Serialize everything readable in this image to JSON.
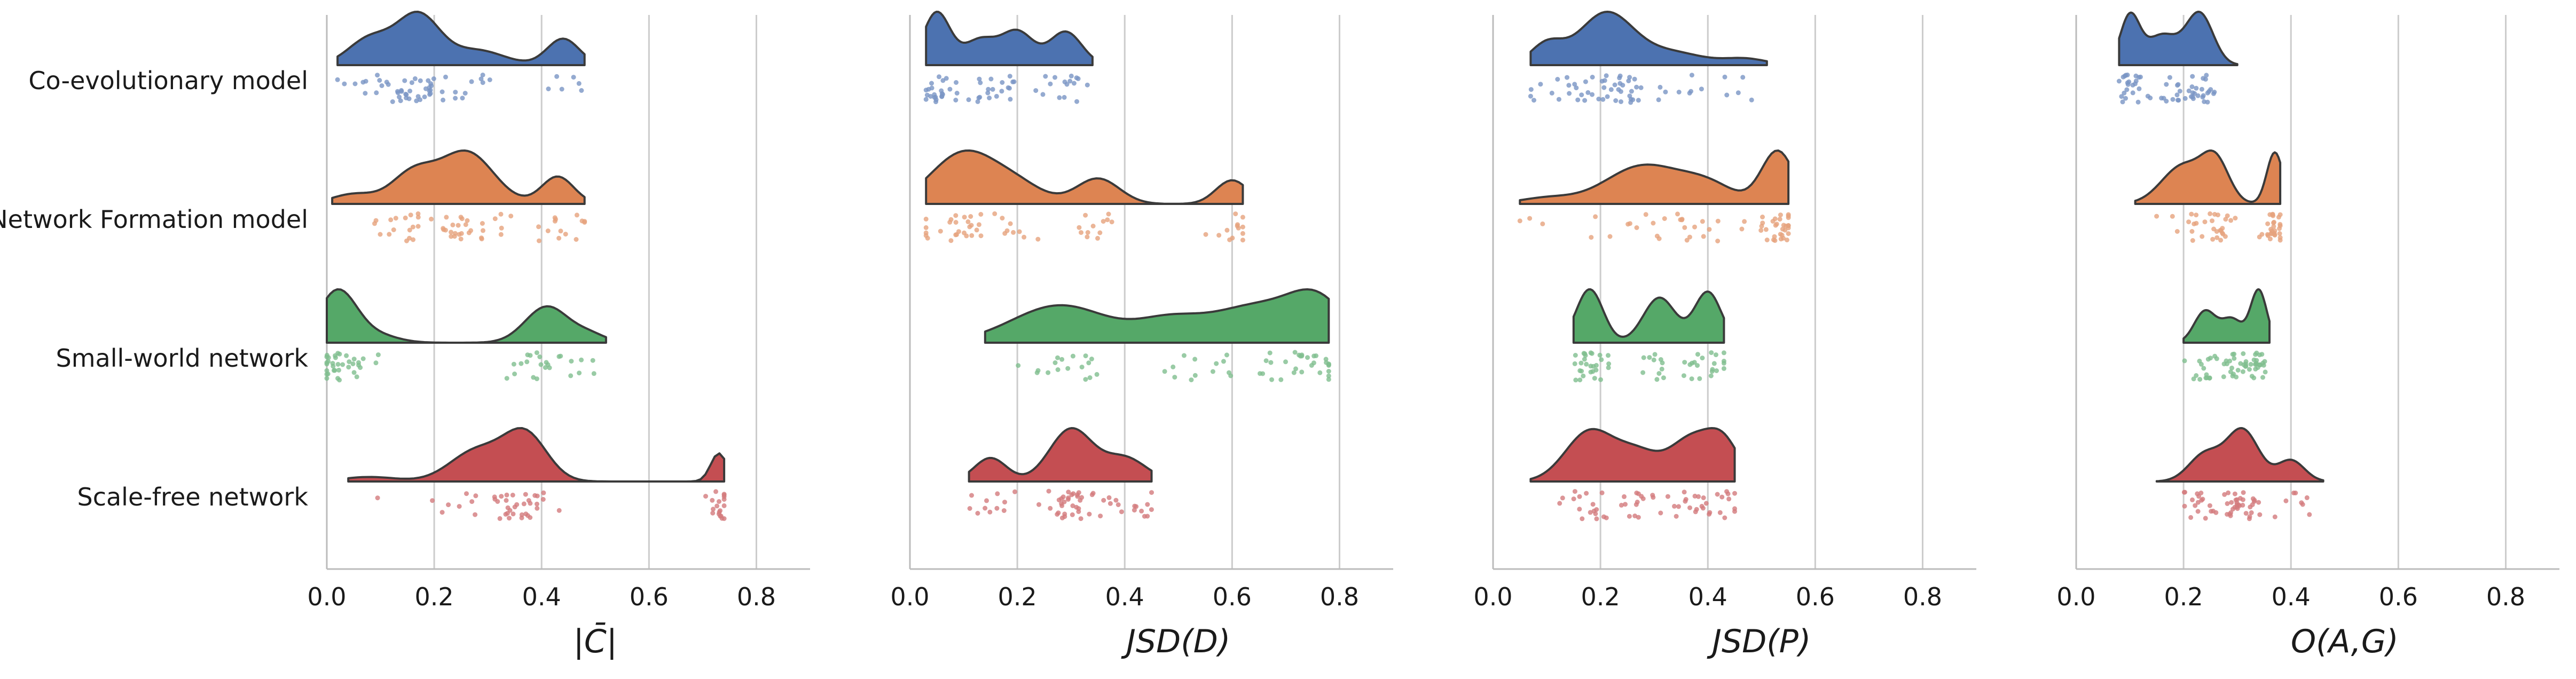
{
  "chart_data": {
    "type": "raincloud",
    "categories": [
      "Co-evolutionary model",
      "Network Formation model",
      "Small-world network",
      "Scale-free network"
    ],
    "colors": [
      "#4c72b0",
      "#dd8452",
      "#55a868",
      "#c44e52"
    ],
    "xlim": [
      0,
      0.9
    ],
    "xticks": [
      "0.0",
      "0.2",
      "0.4",
      "0.6",
      "0.8"
    ],
    "grid": "vertical",
    "panels": [
      {
        "xlabel": "|C̄|",
        "series": [
          {
            "name": "Co-evolutionary model",
            "min": 0.02,
            "max": 0.48,
            "peaks": [
              [
                0.08,
                0.45,
                0.04
              ],
              [
                0.17,
                0.85,
                0.04
              ],
              [
                0.28,
                0.25,
                0.05
              ],
              [
                0.44,
                0.45,
                0.03
              ]
            ]
          },
          {
            "name": "Network Formation model",
            "min": 0.01,
            "max": 0.48,
            "peaks": [
              [
                0.05,
                0.18,
                0.04
              ],
              [
                0.16,
                0.55,
                0.04
              ],
              [
                0.26,
                0.95,
                0.05
              ],
              [
                0.43,
                0.5,
                0.03
              ]
            ]
          },
          {
            "name": "Small-world network",
            "min": 0.0,
            "max": 0.52,
            "peaks": [
              [
                0.02,
                1.0,
                0.035
              ],
              [
                0.09,
                0.15,
                0.04
              ],
              [
                0.41,
                0.7,
                0.04
              ],
              [
                0.49,
                0.15,
                0.03
              ]
            ]
          },
          {
            "name": "Scale-free network",
            "min": 0.04,
            "max": 0.74,
            "peaks": [
              [
                0.08,
                0.08,
                0.05
              ],
              [
                0.28,
                0.55,
                0.05
              ],
              [
                0.37,
                0.82,
                0.04
              ],
              [
                0.73,
                0.5,
                0.015
              ]
            ]
          }
        ]
      },
      {
        "xlabel": "JSD(D)",
        "series": [
          {
            "name": "Co-evolutionary model",
            "min": 0.03,
            "max": 0.34,
            "peaks": [
              [
                0.05,
                0.95,
                0.025
              ],
              [
                0.13,
                0.45,
                0.03
              ],
              [
                0.2,
                0.6,
                0.03
              ],
              [
                0.29,
                0.6,
                0.03
              ]
            ]
          },
          {
            "name": "Network Formation model",
            "min": 0.03,
            "max": 0.62,
            "peaks": [
              [
                0.1,
                0.6,
                0.06
              ],
              [
                0.2,
                0.2,
                0.05
              ],
              [
                0.35,
                0.3,
                0.04
              ],
              [
                0.6,
                0.28,
                0.03
              ]
            ]
          },
          {
            "name": "Small-world network",
            "min": 0.14,
            "max": 0.78,
            "peaks": [
              [
                0.28,
                0.9,
                0.09
              ],
              [
                0.48,
                0.45,
                0.06
              ],
              [
                0.65,
                0.9,
                0.09
              ],
              [
                0.76,
                0.8,
                0.05
              ]
            ]
          },
          {
            "name": "Scale-free network",
            "min": 0.11,
            "max": 0.45,
            "peaks": [
              [
                0.15,
                0.45,
                0.03
              ],
              [
                0.3,
                1.0,
                0.04
              ],
              [
                0.4,
                0.45,
                0.04
              ]
            ]
          }
        ]
      },
      {
        "xlabel": "JSD(P)",
        "series": [
          {
            "name": "Co-evolutionary model",
            "min": 0.07,
            "max": 0.51,
            "peaks": [
              [
                0.1,
                0.4,
                0.03
              ],
              [
                0.21,
                1.0,
                0.05
              ],
              [
                0.33,
                0.25,
                0.06
              ],
              [
                0.47,
                0.12,
                0.04
              ]
            ]
          },
          {
            "name": "Network Formation model",
            "min": 0.05,
            "max": 0.55,
            "peaks": [
              [
                0.1,
                0.1,
                0.05
              ],
              [
                0.28,
                0.65,
                0.07
              ],
              [
                0.4,
                0.3,
                0.05
              ],
              [
                0.53,
                0.9,
                0.03
              ]
            ]
          },
          {
            "name": "Small-world network",
            "min": 0.15,
            "max": 0.43,
            "peaks": [
              [
                0.18,
                0.95,
                0.025
              ],
              [
                0.31,
                0.8,
                0.03
              ],
              [
                0.4,
                0.9,
                0.025
              ]
            ]
          },
          {
            "name": "Scale-free network",
            "min": 0.07,
            "max": 0.45,
            "peaks": [
              [
                0.18,
                0.65,
                0.045
              ],
              [
                0.27,
                0.35,
                0.04
              ],
              [
                0.37,
                0.55,
                0.04
              ],
              [
                0.43,
                0.45,
                0.03
              ]
            ]
          }
        ]
      },
      {
        "xlabel": "O(A,G)",
        "series": [
          {
            "name": "Co-evolutionary model",
            "min": 0.08,
            "max": 0.3,
            "peaks": [
              [
                0.1,
                0.8,
                0.018
              ],
              [
                0.16,
                0.5,
                0.03
              ],
              [
                0.23,
                0.85,
                0.025
              ]
            ]
          },
          {
            "name": "Network Formation model",
            "min": 0.11,
            "max": 0.38,
            "peaks": [
              [
                0.2,
                0.45,
                0.04
              ],
              [
                0.26,
                0.45,
                0.025
              ],
              [
                0.37,
                0.6,
                0.015
              ]
            ]
          },
          {
            "name": "Small-world network",
            "min": 0.2,
            "max": 0.36,
            "peaks": [
              [
                0.24,
                0.6,
                0.02
              ],
              [
                0.29,
                0.45,
                0.02
              ],
              [
                0.34,
                1.0,
                0.015
              ]
            ]
          },
          {
            "name": "Scale-free network",
            "min": 0.15,
            "max": 0.46,
            "peaks": [
              [
                0.24,
                0.45,
                0.03
              ],
              [
                0.31,
                0.85,
                0.03
              ],
              [
                0.4,
                0.35,
                0.025
              ]
            ]
          }
        ]
      }
    ]
  }
}
